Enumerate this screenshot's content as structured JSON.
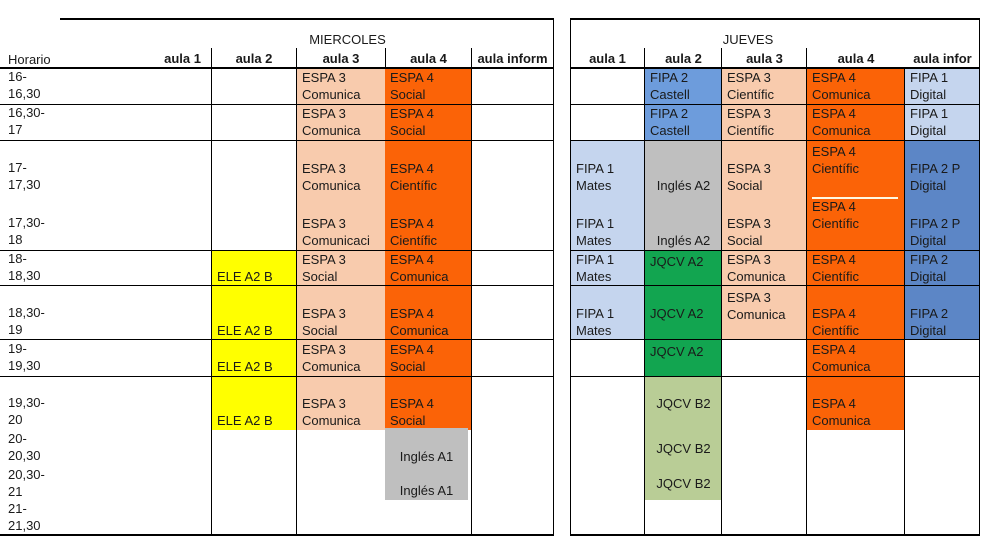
{
  "day_headers": {
    "miercoles": "MIERCOLES",
    "jueves": "JUEVES"
  },
  "horario_label": "Horario",
  "columns": {
    "miercoles": [
      "aula 1",
      "aula 2",
      "aula 3",
      "aula 4",
      "aula inform"
    ],
    "jueves": [
      "aula 1",
      "aula 2",
      "aula 3",
      "aula 4",
      "aula infor"
    ]
  },
  "time_slots": [
    [
      "16-",
      "16,30"
    ],
    [
      "16,30-",
      "17"
    ],
    [
      "17-",
      "17,30"
    ],
    [
      "17,30-",
      "18"
    ],
    [
      "18-",
      "18,30"
    ],
    [
      "18,30-",
      "19"
    ],
    [
      "19-",
      "19,30"
    ],
    [
      "19,30-",
      "20"
    ],
    [
      "20-",
      "20,30"
    ],
    [
      "20,30-",
      "21"
    ],
    [
      "21-",
      "21,30"
    ]
  ],
  "colors": {
    "peach": "#F8CBAD",
    "orange": "#FB6307",
    "yellow": "#FFFF00",
    "gray": "#BFBFBF",
    "blue_light": "#C5D5EE",
    "blue_castell": "#6D9CDC",
    "blue_digital": "#5C86C6",
    "green": "#12A550",
    "green_light": "#B9CD96",
    "divider": "#FFF8E1"
  },
  "blocks": [
    {
      "day": "m",
      "room": "a2",
      "r0": 4,
      "r1": 7,
      "color": "yellow",
      "labels": [
        {
          "row": 4,
          "lines": [
            "ELE A2 B"
          ]
        },
        {
          "row": 5,
          "lines": [
            "ELE A2 B"
          ]
        },
        {
          "row": 6,
          "lines": [
            "ELE A2 B"
          ]
        },
        {
          "row": 7,
          "lines": [
            "ELE A2 B"
          ]
        }
      ]
    },
    {
      "day": "m",
      "room": "a3",
      "r0": 0,
      "r1": 7,
      "color": "peach",
      "labels": [
        {
          "row": 0,
          "lines": [
            "ESPA 3",
            "Comunica"
          ]
        },
        {
          "row": 1,
          "lines": [
            "ESPA 3",
            "Comunica"
          ]
        },
        {
          "row": 2,
          "lines": [
            "ESPA 3",
            "Comunica"
          ]
        },
        {
          "row": 3,
          "lines": [
            "ESPA 3",
            "Comunicaci"
          ]
        },
        {
          "row": 4,
          "lines": [
            "ESPA 3",
            "Social"
          ]
        },
        {
          "row": 5,
          "lines": [
            "ESPA 3",
            "Social"
          ]
        },
        {
          "row": 6,
          "lines": [
            "ESPA 3",
            "Comunica"
          ]
        },
        {
          "row": 7,
          "lines": [
            "ESPA 3",
            "Comunica"
          ]
        }
      ]
    },
    {
      "day": "m",
      "room": "a4",
      "r0": 0,
      "r1": 7,
      "color": "orange",
      "labels": [
        {
          "row": 0,
          "lines": [
            "ESPA 4",
            "Social"
          ]
        },
        {
          "row": 1,
          "lines": [
            "ESPA 4",
            "Social"
          ]
        },
        {
          "row": 2,
          "lines": [
            "ESPA 4",
            "Científic"
          ]
        },
        {
          "row": 3,
          "lines": [
            "ESPA 4",
            "Científic"
          ]
        },
        {
          "row": 4,
          "lines": [
            "ESPA 4",
            "Comunica"
          ]
        },
        {
          "row": 5,
          "lines": [
            "ESPA 4",
            "Comunica"
          ]
        },
        {
          "row": 6,
          "lines": [
            "ESPA 4",
            "Social"
          ]
        },
        {
          "row": 7,
          "lines": [
            "ESPA 4",
            "Social"
          ]
        }
      ]
    },
    {
      "day": "m",
      "room": "a4",
      "r0": 8,
      "r1": 9,
      "color": "gray",
      "labels": [
        {
          "row": 8,
          "lines": [
            "Inglés A1"
          ],
          "align": "center"
        },
        {
          "row": 9,
          "lines": [
            "Inglés A1"
          ],
          "align": "center"
        }
      ]
    },
    {
      "day": "j",
      "room": "a2",
      "r0": 0,
      "r1": 1,
      "color": "blue_castell",
      "labels": [
        {
          "row": 0,
          "lines": [
            "FIPA 2",
            "Castell"
          ]
        },
        {
          "row": 1,
          "lines": [
            "FIPA 2",
            "Castell"
          ]
        }
      ]
    },
    {
      "day": "j",
      "room": "a3",
      "r0": 0,
      "r1": 1,
      "color": "peach",
      "labels": [
        {
          "row": 0,
          "lines": [
            "ESPA 3",
            "Científic"
          ]
        },
        {
          "row": 1,
          "lines": [
            "ESPA 3",
            "Científic"
          ]
        }
      ]
    },
    {
      "day": "j",
      "room": "a4",
      "r0": 0,
      "r1": 7,
      "color": "orange",
      "divider_after_row": 2,
      "labels": [
        {
          "row": 0,
          "lines": [
            "ESPA 4",
            "Comunica"
          ]
        },
        {
          "row": 1,
          "lines": [
            "ESPA 4",
            "Comunica"
          ]
        },
        {
          "row": 2,
          "lines": [
            "ESPA 4",
            "Científic"
          ],
          "valign": "top"
        },
        {
          "row": 3,
          "lines": [
            "ESPA 4",
            "Científic"
          ],
          "valign": "top"
        },
        {
          "row": 4,
          "lines": [
            "ESPA 4",
            "Científic"
          ]
        },
        {
          "row": 5,
          "lines": [
            "ESPA 4",
            "Científic"
          ]
        },
        {
          "row": 6,
          "lines": [
            "ESPA 4",
            "Comunica"
          ]
        },
        {
          "row": 7,
          "lines": [
            "ESPA 4",
            "Comunica"
          ]
        }
      ]
    },
    {
      "day": "j",
      "room": "ai",
      "r0": 0,
      "r1": 1,
      "color": "blue_light",
      "labels": [
        {
          "row": 0,
          "lines": [
            "FIPA 1",
            "Digital"
          ]
        },
        {
          "row": 1,
          "lines": [
            "FIPA 1",
            "Digital"
          ]
        }
      ]
    },
    {
      "day": "j",
      "room": "a1",
      "r0": 2,
      "r1": 3,
      "color": "blue_light",
      "labels": [
        {
          "row": 2,
          "lines": [
            "FIPA 1",
            "Mates"
          ]
        },
        {
          "row": 3,
          "lines": [
            "FIPA 1",
            "Mates"
          ]
        }
      ]
    },
    {
      "day": "j",
      "room": "a2",
      "r0": 2,
      "r1": 3,
      "color": "gray",
      "labels": [
        {
          "row": 2,
          "lines": [
            "Inglés A2"
          ],
          "align": "center"
        },
        {
          "row": 3,
          "lines": [
            "Inglés A2"
          ],
          "align": "center"
        }
      ]
    },
    {
      "day": "j",
      "room": "a3",
      "r0": 2,
      "r1": 3,
      "color": "peach",
      "labels": [
        {
          "row": 2,
          "lines": [
            "ESPA 3",
            "Social"
          ]
        },
        {
          "row": 3,
          "lines": [
            "ESPA 3",
            "Social"
          ]
        }
      ]
    },
    {
      "day": "j",
      "room": "ai",
      "r0": 2,
      "r1": 3,
      "color": "blue_digital",
      "labels": [
        {
          "row": 2,
          "lines": [
            "FIPA 2 P",
            "Digital"
          ]
        },
        {
          "row": 3,
          "lines": [
            "FIPA 2 P",
            "Digital"
          ]
        }
      ]
    },
    {
      "day": "j",
      "room": "a1",
      "r0": 4,
      "r1": 5,
      "color": "blue_light",
      "labels": [
        {
          "row": 4,
          "lines": [
            "FIPA 1",
            "Mates"
          ]
        },
        {
          "row": 5,
          "lines": [
            "FIPA 1",
            "Mates"
          ]
        }
      ]
    },
    {
      "day": "j",
      "room": "a2",
      "r0": 4,
      "r1": 6,
      "color": "green",
      "labels": [
        {
          "row": 4,
          "lines": [
            "JQCV A2"
          ],
          "valign": "top"
        },
        {
          "row": 5,
          "lines": [
            "JQCV A2"
          ],
          "valign": "center"
        },
        {
          "row": 6,
          "lines": [
            "JQCV A2"
          ],
          "valign": "top"
        }
      ]
    },
    {
      "day": "j",
      "room": "a3",
      "r0": 4,
      "r1": 5,
      "color": "peach",
      "labels": [
        {
          "row": 4,
          "lines": [
            "ESPA 3",
            "Comunica"
          ]
        },
        {
          "row": 5,
          "lines": [
            "ESPA 3",
            "Comunica"
          ],
          "valign": "top"
        }
      ]
    },
    {
      "day": "j",
      "room": "ai",
      "r0": 4,
      "r1": 5,
      "color": "blue_digital",
      "labels": [
        {
          "row": 4,
          "lines": [
            "FIPA 2",
            "Digital"
          ]
        },
        {
          "row": 5,
          "lines": [
            "FIPA 2",
            "Digital"
          ]
        }
      ]
    },
    {
      "day": "j",
      "room": "a2",
      "r0": 7,
      "r1": 9,
      "color": "green_light",
      "labels": [
        {
          "row": 7,
          "lines": [
            "JQCV B2"
          ],
          "align": "center",
          "valign": "center"
        },
        {
          "row": 8,
          "lines": [
            "JQCV B2"
          ],
          "align": "center",
          "valign": "center"
        },
        {
          "row": 9,
          "lines": [
            "JQCV B2"
          ],
          "align": "center",
          "valign": "center"
        }
      ]
    }
  ]
}
